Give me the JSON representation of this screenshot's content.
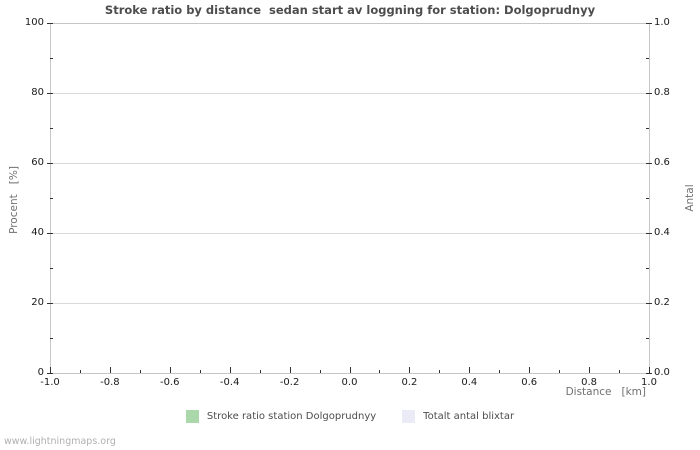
{
  "page": {
    "watermark": "www.lightningmaps.org"
  },
  "colors": {
    "background": "#ffffff",
    "frame": "#c6c6c6",
    "gridline": "#dadada",
    "tick": "#333333",
    "tick_label": "#1a1a1a",
    "title": "#4d4d4d",
    "axis_label": "#707070",
    "legend_text": "#4d4d4d",
    "watermark": "#b0b0b0",
    "series_green": "#abd8ab",
    "series_lavender": "#ebebf8"
  },
  "chart_data": {
    "type": "line",
    "title": "Stroke ratio by distance  sedan start av loggning for station: Dolgoprudnyy",
    "x_axis": {
      "label": "Distance   [km]",
      "min": -1.0,
      "max": 1.0,
      "major_ticks": [
        -1.0,
        -0.8,
        -0.6,
        -0.4,
        -0.2,
        0.0,
        0.2,
        0.4,
        0.6,
        0.8,
        1.0
      ],
      "tick_labels": [
        "-1.0",
        "-0.8",
        "-0.6",
        "-0.4",
        "-0.2",
        "0.0",
        "0.2",
        "0.4",
        "0.6",
        "0.8",
        "1.0"
      ],
      "minor_step": 0.1
    },
    "y_axis_left": {
      "label": "Procent   [%]",
      "min": 0,
      "max": 100,
      "major_ticks": [
        0,
        20,
        40,
        60,
        80,
        100
      ],
      "tick_labels": [
        "0",
        "20",
        "40",
        "60",
        "80",
        "100"
      ],
      "minor_step": 10
    },
    "y_axis_right": {
      "label": "Antal",
      "min": 0.0,
      "max": 1.0,
      "major_ticks": [
        0.0,
        0.2,
        0.4,
        0.6,
        0.8,
        1.0
      ],
      "tick_labels": [
        "0.0",
        "0.2",
        "0.4",
        "0.6",
        "0.8",
        "1.0"
      ],
      "minor_step": 0.1
    },
    "grid": {
      "horizontal": true,
      "vertical": false
    },
    "legend_position": "bottom-center",
    "series": [
      {
        "name": "Stroke ratio station Dolgoprudnyy",
        "color": "#abd8ab",
        "axis": "left",
        "x": [],
        "values": []
      },
      {
        "name": "Totalt antal blixtar",
        "color": "#ebebf8",
        "axis": "right",
        "x": [],
        "values": []
      }
    ]
  }
}
